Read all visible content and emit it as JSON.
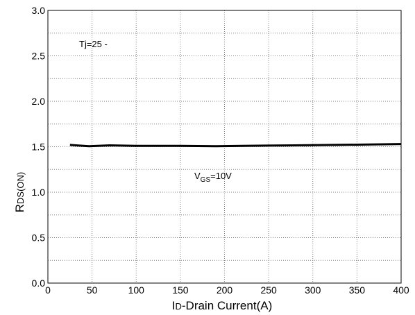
{
  "chart_data": {
    "type": "line",
    "xlabel": "ID-Drain Current(A)",
    "xlabel_prefix": "I",
    "xlabel_sub": "D",
    "xlabel_rest": "-Drain Current(A)",
    "ylabel": "RDS(ON)",
    "ylabel_main": "R",
    "ylabel_sub": "DS(ON)",
    "xlim": [
      0,
      400
    ],
    "ylim": [
      0.0,
      3.0
    ],
    "xticks": [
      0,
      50,
      100,
      150,
      200,
      250,
      300,
      350,
      400
    ],
    "xtick_labels": [
      "0",
      "50",
      "100",
      "150",
      "200",
      "250",
      "300",
      "350",
      "400"
    ],
    "yticks": [
      0.0,
      0.5,
      1.0,
      1.5,
      2.0,
      2.5,
      3.0
    ],
    "ytick_labels": [
      "0.0",
      "0.5",
      "1.0",
      "1.5",
      "2.0",
      "2.5",
      "3.0"
    ],
    "grid": true,
    "grid_minor_y_step": 0.25,
    "series": [
      {
        "x": [
          25,
          47,
          70,
          100,
          150,
          190,
          220,
          280,
          350,
          400
        ],
        "y": [
          1.52,
          1.505,
          1.515,
          1.51,
          1.51,
          1.505,
          1.51,
          1.515,
          1.523,
          1.53
        ],
        "color": "#000000"
      }
    ],
    "annotations": {
      "tj": "Tj=25 -",
      "vgs_main": "V",
      "vgs_sub": "GS",
      "vgs_rest": "=10V"
    }
  }
}
